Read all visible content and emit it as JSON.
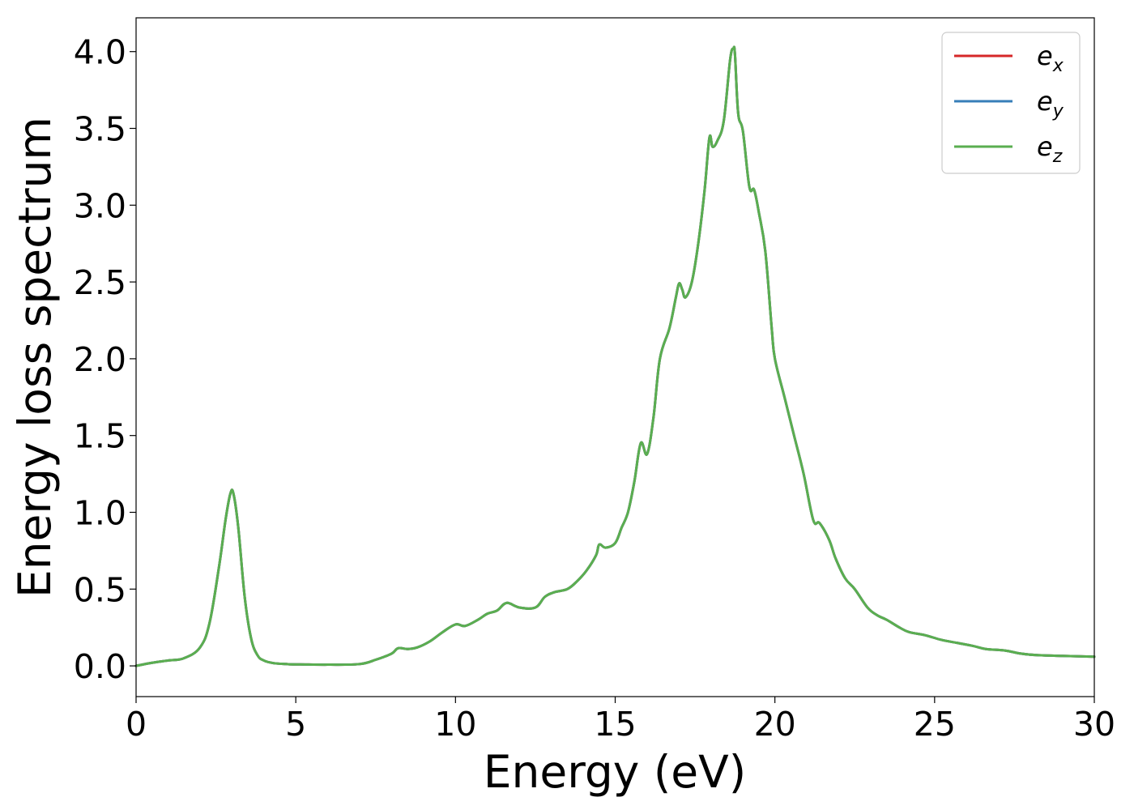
{
  "chart_data": {
    "type": "line",
    "title": "",
    "xlabel": "Energy (eV)",
    "ylabel": "Energy loss spectrum",
    "xlim": [
      0,
      30
    ],
    "ylim": [
      -0.2,
      4.22
    ],
    "xticks": [
      0,
      5,
      10,
      15,
      20,
      25,
      30
    ],
    "xtick_labels": [
      "0",
      "5",
      "10",
      "15",
      "20",
      "25",
      "30"
    ],
    "yticks": [
      0.0,
      0.5,
      1.0,
      1.5,
      2.0,
      2.5,
      3.0,
      3.5,
      4.0
    ],
    "ytick_labels": [
      "0.0",
      "0.5",
      "1.0",
      "1.5",
      "2.0",
      "2.5",
      "3.0",
      "3.5",
      "4.0"
    ],
    "grid": false,
    "legend_position": "top-right",
    "x": [
      0,
      0.5,
      1.0,
      1.5,
      2.0,
      2.3,
      2.6,
      2.8,
      2.95,
      3.05,
      3.2,
      3.4,
      3.6,
      3.8,
      4.0,
      4.3,
      4.7,
      5.0,
      6.0,
      7.0,
      7.5,
      8.0,
      8.2,
      8.5,
      8.8,
      9.2,
      9.6,
      10.0,
      10.3,
      10.7,
      11.0,
      11.3,
      11.6,
      12.0,
      12.5,
      12.8,
      13.1,
      13.5,
      13.8,
      14.1,
      14.4,
      14.5,
      14.7,
      15.0,
      15.2,
      15.4,
      15.6,
      15.8,
      16.0,
      16.2,
      16.4,
      16.7,
      16.9,
      17.0,
      17.1,
      17.2,
      17.4,
      17.6,
      17.8,
      17.95,
      18.05,
      18.2,
      18.4,
      18.6,
      18.7,
      18.75,
      18.85,
      19.0,
      19.2,
      19.35,
      19.5,
      19.7,
      19.9,
      20.0,
      20.3,
      20.6,
      20.9,
      21.2,
      21.4,
      21.7,
      21.9,
      22.2,
      22.5,
      22.9,
      23.2,
      23.5,
      23.9,
      24.2,
      24.7,
      25.2,
      25.7,
      26.2,
      26.6,
      27.2,
      27.7,
      28.2,
      29.0,
      30.0
    ],
    "series": [
      {
        "name": "e_x",
        "color": "#d62728",
        "values": [
          0.0,
          0.02,
          0.035,
          0.05,
          0.12,
          0.28,
          0.65,
          0.95,
          1.12,
          1.12,
          0.9,
          0.45,
          0.18,
          0.07,
          0.035,
          0.018,
          0.012,
          0.01,
          0.008,
          0.012,
          0.04,
          0.08,
          0.115,
          0.11,
          0.12,
          0.16,
          0.22,
          0.27,
          0.26,
          0.3,
          0.34,
          0.36,
          0.41,
          0.38,
          0.38,
          0.45,
          0.48,
          0.5,
          0.55,
          0.62,
          0.72,
          0.79,
          0.77,
          0.8,
          0.9,
          1.0,
          1.2,
          1.45,
          1.38,
          1.62,
          2.0,
          2.2,
          2.4,
          2.49,
          2.45,
          2.4,
          2.5,
          2.75,
          3.1,
          3.44,
          3.38,
          3.42,
          3.55,
          3.95,
          4.02,
          3.98,
          3.6,
          3.48,
          3.12,
          3.1,
          2.95,
          2.7,
          2.2,
          2.0,
          1.75,
          1.5,
          1.25,
          0.95,
          0.93,
          0.82,
          0.7,
          0.57,
          0.5,
          0.38,
          0.33,
          0.3,
          0.25,
          0.22,
          0.2,
          0.17,
          0.15,
          0.13,
          0.11,
          0.1,
          0.08,
          0.07,
          0.065,
          0.06
        ]
      },
      {
        "name": "e_y",
        "color": "#377eb8",
        "values": [
          0.0,
          0.02,
          0.035,
          0.05,
          0.12,
          0.28,
          0.65,
          0.95,
          1.12,
          1.12,
          0.9,
          0.45,
          0.18,
          0.07,
          0.035,
          0.018,
          0.012,
          0.01,
          0.008,
          0.012,
          0.04,
          0.08,
          0.115,
          0.11,
          0.12,
          0.16,
          0.22,
          0.27,
          0.26,
          0.3,
          0.34,
          0.36,
          0.41,
          0.38,
          0.38,
          0.45,
          0.48,
          0.5,
          0.55,
          0.62,
          0.72,
          0.79,
          0.77,
          0.8,
          0.9,
          1.0,
          1.2,
          1.45,
          1.38,
          1.62,
          2.0,
          2.2,
          2.4,
          2.49,
          2.45,
          2.4,
          2.5,
          2.75,
          3.1,
          3.44,
          3.38,
          3.42,
          3.55,
          3.95,
          4.02,
          3.98,
          3.6,
          3.48,
          3.12,
          3.1,
          2.95,
          2.7,
          2.2,
          2.0,
          1.75,
          1.5,
          1.25,
          0.95,
          0.93,
          0.82,
          0.7,
          0.57,
          0.5,
          0.38,
          0.33,
          0.3,
          0.25,
          0.22,
          0.2,
          0.17,
          0.15,
          0.13,
          0.11,
          0.1,
          0.08,
          0.07,
          0.065,
          0.06
        ]
      },
      {
        "name": "e_z",
        "color": "#5aae50",
        "values": [
          0.0,
          0.02,
          0.035,
          0.05,
          0.12,
          0.28,
          0.65,
          0.95,
          1.12,
          1.12,
          0.9,
          0.45,
          0.18,
          0.07,
          0.035,
          0.018,
          0.012,
          0.01,
          0.008,
          0.012,
          0.04,
          0.08,
          0.115,
          0.11,
          0.12,
          0.16,
          0.22,
          0.27,
          0.26,
          0.3,
          0.34,
          0.36,
          0.41,
          0.38,
          0.38,
          0.45,
          0.48,
          0.5,
          0.55,
          0.62,
          0.72,
          0.79,
          0.77,
          0.8,
          0.9,
          1.0,
          1.2,
          1.45,
          1.38,
          1.62,
          2.0,
          2.2,
          2.4,
          2.49,
          2.45,
          2.4,
          2.5,
          2.75,
          3.1,
          3.44,
          3.38,
          3.42,
          3.55,
          3.95,
          4.02,
          3.98,
          3.6,
          3.48,
          3.12,
          3.1,
          2.95,
          2.7,
          2.2,
          2.0,
          1.75,
          1.5,
          1.25,
          0.95,
          0.93,
          0.82,
          0.7,
          0.57,
          0.5,
          0.38,
          0.33,
          0.3,
          0.25,
          0.22,
          0.2,
          0.17,
          0.15,
          0.13,
          0.11,
          0.1,
          0.08,
          0.07,
          0.065,
          0.06
        ]
      }
    ],
    "legend": [
      {
        "base": "e",
        "sub": "x",
        "color": "#d62728"
      },
      {
        "base": "e",
        "sub": "y",
        "color": "#377eb8"
      },
      {
        "base": "e",
        "sub": "z",
        "color": "#5aae50"
      }
    ]
  }
}
